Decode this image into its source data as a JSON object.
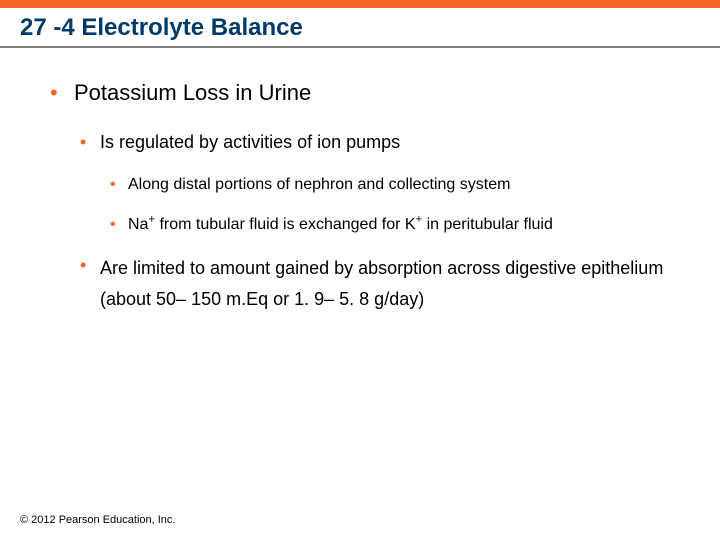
{
  "colors": {
    "accent": "#f26522",
    "title": "#003a6a",
    "bullet": "#f26522",
    "text": "#000000",
    "background": "#ffffff",
    "underline": "#7f7f7f"
  },
  "typography": {
    "title_fontsize": 24,
    "lvl1_fontsize": 22,
    "lvl2_fontsize": 18,
    "lvl3_fontsize": 16,
    "footer_fontsize": 11,
    "font_family": "Arial"
  },
  "title": "27 -4 Electrolyte Balance",
  "bullets": {
    "lvl1a": "Potassium Loss in Urine",
    "lvl2a": "Is regulated by activities of ion pumps",
    "lvl3a": "Along distal portions of nephron and collecting system",
    "lvl3b_pre": "Na",
    "lvl3b_sup1": "+",
    "lvl3b_mid": " from tubular fluid is exchanged for K",
    "lvl3b_sup2": "+",
    "lvl3b_post": " in peritubular fluid",
    "lvl2b": "Are limited to amount gained by absorption across digestive epithelium (about 50– 150 m.Eq or 1. 9– 5. 8 g/day)"
  },
  "footer": "© 2012 Pearson Education, Inc.",
  "bullet_char": "•"
}
